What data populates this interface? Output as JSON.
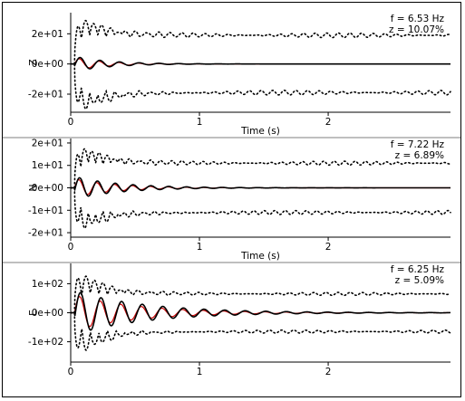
{
  "colors": {
    "fit": "#cc0000",
    "record": "#000000",
    "envelope": "#000000",
    "axis": "#000000",
    "separator": "#555555"
  },
  "chart_data": [
    {
      "type": "line",
      "panel": "Z",
      "ylabel": "Z",
      "xlabel": "Time (s)",
      "xlim": [
        0,
        2.95
      ],
      "ylim": [
        -32,
        34
      ],
      "x_ticks": [
        0,
        1,
        2
      ],
      "y_ticks": [
        20,
        0,
        -20
      ],
      "y_tick_labels": [
        "2e+01",
        "0e+00",
        "-2e+01"
      ],
      "annotation": {
        "line1": "f = 6.53 Hz",
        "line2": "z = 10.07%"
      },
      "frequency_hz": 6.53,
      "damping_ratio": 0.1007,
      "envelope_level": 19,
      "series": [
        {
          "style": "solid black",
          "peak_amplitude": 5,
          "damping": 0.1007
        },
        {
          "style": "solid red",
          "peak_amplitude": 4,
          "damping": 0.1007
        },
        {
          "style": "dotted black",
          "peak_amplitude": 33,
          "baseline": 19
        }
      ]
    },
    {
      "type": "line",
      "panel": "N",
      "ylabel": "N",
      "xlabel": "Time (s)",
      "xlim": [
        0,
        2.95
      ],
      "ylim": [
        -22,
        22
      ],
      "x_ticks": [
        0,
        1,
        2
      ],
      "y_ticks": [
        20,
        10,
        0,
        -10,
        -20
      ],
      "y_tick_labels": [
        "2e+01",
        "1e+01",
        "0e+00",
        "-1e+01",
        "-2e+01"
      ],
      "annotation": {
        "line1": "f = 7.22 Hz",
        "line2": "z = 6.89%"
      },
      "frequency_hz": 7.22,
      "damping_ratio": 0.0689,
      "envelope_level": 11,
      "series": [
        {
          "style": "solid black",
          "peak_amplitude": 5,
          "damping": 0.0689
        },
        {
          "style": "solid red",
          "peak_amplitude": 4,
          "damping": 0.0689
        },
        {
          "style": "dotted black",
          "peak_amplitude": 20,
          "baseline": 11
        }
      ]
    },
    {
      "type": "line",
      "panel": "E",
      "ylabel": "E",
      "xlabel": "",
      "xlim": [
        0,
        2.95
      ],
      "ylim": [
        -170,
        170
      ],
      "x_ticks": [
        0,
        1,
        2
      ],
      "y_ticks": [
        100,
        0,
        -100
      ],
      "y_tick_labels": [
        "1e+02",
        "0e+00",
        "-1e+02"
      ],
      "annotation": {
        "line1": "f = 6.25 Hz",
        "line2": "z = 5.09%"
      },
      "frequency_hz": 6.25,
      "damping_ratio": 0.0509,
      "envelope_level": 65,
      "series": [
        {
          "style": "solid black",
          "peak_amplitude": 75,
          "damping": 0.0509
        },
        {
          "style": "solid red",
          "peak_amplitude": 60,
          "damping": 0.0509
        },
        {
          "style": "dotted black",
          "peak_amplitude": 150,
          "baseline": 65
        }
      ]
    }
  ]
}
